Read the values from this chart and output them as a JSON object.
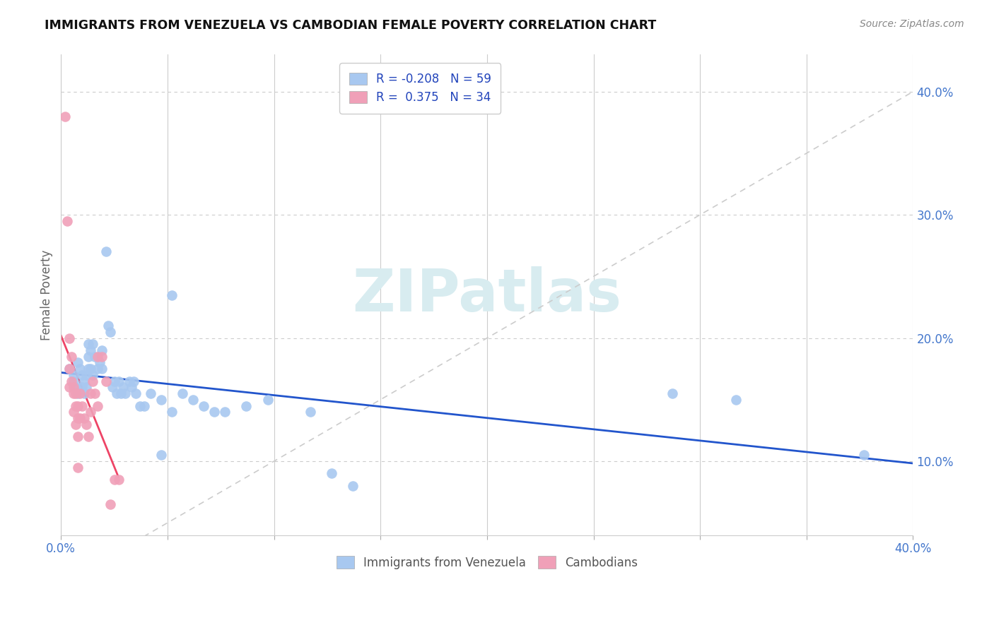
{
  "title": "IMMIGRANTS FROM VENEZUELA VS CAMBODIAN FEMALE POVERTY CORRELATION CHART",
  "source": "Source: ZipAtlas.com",
  "ylabel": "Female Poverty",
  "right_yticks": [
    "10.0%",
    "20.0%",
    "30.0%",
    "40.0%"
  ],
  "right_ytick_vals": [
    0.1,
    0.2,
    0.3,
    0.4
  ],
  "xlim": [
    0.0,
    0.4
  ],
  "ylim": [
    0.04,
    0.43
  ],
  "legend_r_blue": "-0.208",
  "legend_n_blue": "59",
  "legend_r_pink": "0.375",
  "legend_n_pink": "34",
  "blue_color": "#A8C8F0",
  "pink_color": "#F0A0B8",
  "trendline_blue_color": "#2255CC",
  "trendline_pink_color": "#EE4466",
  "trendline_diag_color": "#CCCCCC",
  "watermark_color": "#D8ECF0",
  "blue_scatter": [
    [
      0.004,
      0.175
    ],
    [
      0.006,
      0.165
    ],
    [
      0.006,
      0.17
    ],
    [
      0.007,
      0.16
    ],
    [
      0.008,
      0.18
    ],
    [
      0.008,
      0.155
    ],
    [
      0.009,
      0.175
    ],
    [
      0.01,
      0.16
    ],
    [
      0.01,
      0.17
    ],
    [
      0.011,
      0.165
    ],
    [
      0.011,
      0.155
    ],
    [
      0.012,
      0.16
    ],
    [
      0.012,
      0.17
    ],
    [
      0.013,
      0.195
    ],
    [
      0.013,
      0.175
    ],
    [
      0.013,
      0.185
    ],
    [
      0.014,
      0.19
    ],
    [
      0.014,
      0.175
    ],
    [
      0.015,
      0.195
    ],
    [
      0.015,
      0.17
    ],
    [
      0.016,
      0.185
    ],
    [
      0.017,
      0.175
    ],
    [
      0.018,
      0.18
    ],
    [
      0.019,
      0.19
    ],
    [
      0.019,
      0.175
    ],
    [
      0.021,
      0.27
    ],
    [
      0.022,
      0.21
    ],
    [
      0.023,
      0.205
    ],
    [
      0.024,
      0.16
    ],
    [
      0.025,
      0.165
    ],
    [
      0.026,
      0.155
    ],
    [
      0.027,
      0.165
    ],
    [
      0.028,
      0.155
    ],
    [
      0.029,
      0.16
    ],
    [
      0.03,
      0.155
    ],
    [
      0.032,
      0.165
    ],
    [
      0.033,
      0.16
    ],
    [
      0.034,
      0.165
    ],
    [
      0.035,
      0.155
    ],
    [
      0.037,
      0.145
    ],
    [
      0.039,
      0.145
    ],
    [
      0.042,
      0.155
    ],
    [
      0.047,
      0.105
    ],
    [
      0.047,
      0.15
    ],
    [
      0.052,
      0.14
    ],
    [
      0.057,
      0.155
    ],
    [
      0.062,
      0.15
    ],
    [
      0.067,
      0.145
    ],
    [
      0.072,
      0.14
    ],
    [
      0.077,
      0.14
    ],
    [
      0.087,
      0.145
    ],
    [
      0.097,
      0.15
    ],
    [
      0.117,
      0.14
    ],
    [
      0.127,
      0.09
    ],
    [
      0.137,
      0.08
    ],
    [
      0.287,
      0.155
    ],
    [
      0.317,
      0.15
    ],
    [
      0.377,
      0.105
    ],
    [
      0.052,
      0.235
    ]
  ],
  "pink_scatter": [
    [
      0.002,
      0.38
    ],
    [
      0.003,
      0.295
    ],
    [
      0.004,
      0.175
    ],
    [
      0.004,
      0.2
    ],
    [
      0.004,
      0.16
    ],
    [
      0.005,
      0.185
    ],
    [
      0.005,
      0.165
    ],
    [
      0.006,
      0.16
    ],
    [
      0.006,
      0.155
    ],
    [
      0.006,
      0.14
    ],
    [
      0.007,
      0.155
    ],
    [
      0.007,
      0.145
    ],
    [
      0.007,
      0.13
    ],
    [
      0.008,
      0.145
    ],
    [
      0.008,
      0.135
    ],
    [
      0.008,
      0.12
    ],
    [
      0.008,
      0.095
    ],
    [
      0.009,
      0.155
    ],
    [
      0.009,
      0.135
    ],
    [
      0.01,
      0.145
    ],
    [
      0.011,
      0.135
    ],
    [
      0.012,
      0.13
    ],
    [
      0.013,
      0.12
    ],
    [
      0.014,
      0.155
    ],
    [
      0.014,
      0.14
    ],
    [
      0.015,
      0.165
    ],
    [
      0.016,
      0.155
    ],
    [
      0.017,
      0.185
    ],
    [
      0.017,
      0.145
    ],
    [
      0.019,
      0.185
    ],
    [
      0.021,
      0.165
    ],
    [
      0.023,
      0.065
    ],
    [
      0.025,
      0.085
    ],
    [
      0.027,
      0.085
    ]
  ]
}
